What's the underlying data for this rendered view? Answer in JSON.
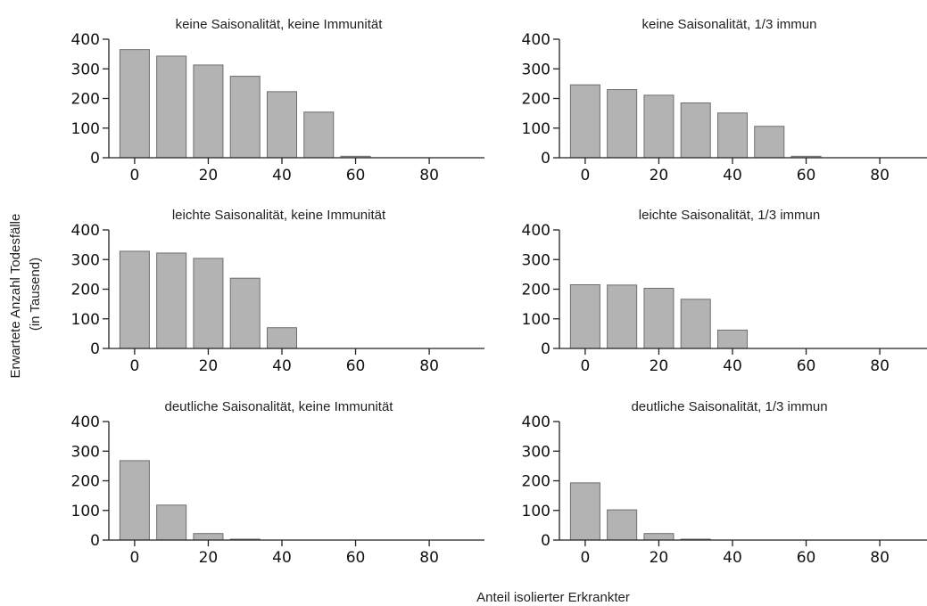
{
  "xlabel": "Anteil isolierter Erkrankter",
  "ylabel_line1": "Erwartete Anzahl Todesfälle",
  "ylabel_line2": "(in Tausend)",
  "bar_color": "#b3b3b3",
  "bar_edge_color": "#6e6e6e",
  "chart_data": [
    {
      "type": "bar",
      "title": "keine Saisonalität, keine Immunität",
      "x": [
        0,
        10,
        20,
        30,
        40,
        50,
        60,
        70,
        80,
        90
      ],
      "values": [
        365,
        343,
        313,
        275,
        223,
        154,
        5,
        0,
        0,
        0
      ],
      "ylim": [
        0,
        400
      ],
      "yticks": [
        0,
        100,
        200,
        300,
        400
      ],
      "xticks": [
        0,
        20,
        40,
        60,
        80
      ]
    },
    {
      "type": "bar",
      "title": "keine Saisonalität, 1/3 immun",
      "x": [
        0,
        10,
        20,
        30,
        40,
        50,
        60,
        70,
        80,
        90
      ],
      "values": [
        246,
        230,
        211,
        185,
        151,
        106,
        5,
        0,
        0,
        0
      ],
      "ylim": [
        0,
        400
      ],
      "yticks": [
        0,
        100,
        200,
        300,
        400
      ],
      "xticks": [
        0,
        20,
        40,
        60,
        80
      ]
    },
    {
      "type": "bar",
      "title": "leichte Saisonalität, keine Immunität",
      "x": [
        0,
        10,
        20,
        30,
        40,
        50,
        60,
        70,
        80,
        90
      ],
      "values": [
        328,
        322,
        304,
        237,
        70,
        0,
        0,
        0,
        0,
        0
      ],
      "ylim": [
        0,
        400
      ],
      "yticks": [
        0,
        100,
        200,
        300,
        400
      ],
      "xticks": [
        0,
        20,
        40,
        60,
        80
      ]
    },
    {
      "type": "bar",
      "title": "leichte Saisonalität, 1/3 immun",
      "x": [
        0,
        10,
        20,
        30,
        40,
        50,
        60,
        70,
        80,
        90
      ],
      "values": [
        215,
        214,
        203,
        166,
        62,
        0,
        0,
        0,
        0,
        0
      ],
      "ylim": [
        0,
        400
      ],
      "yticks": [
        0,
        100,
        200,
        300,
        400
      ],
      "xticks": [
        0,
        20,
        40,
        60,
        80
      ]
    },
    {
      "type": "bar",
      "title": "deutliche Saisonalität, keine Immunität",
      "x": [
        0,
        10,
        20,
        30,
        40,
        50,
        60,
        70,
        80,
        90
      ],
      "values": [
        268,
        118,
        22,
        3,
        0,
        0,
        0,
        0,
        0,
        0
      ],
      "ylim": [
        0,
        400
      ],
      "yticks": [
        0,
        100,
        200,
        300,
        400
      ],
      "xticks": [
        0,
        20,
        40,
        60,
        80
      ]
    },
    {
      "type": "bar",
      "title": "deutliche Saisonalität, 1/3 immun",
      "x": [
        0,
        10,
        20,
        30,
        40,
        50,
        60,
        70,
        80,
        90
      ],
      "values": [
        193,
        102,
        22,
        3,
        0,
        0,
        0,
        0,
        0,
        0
      ],
      "ylim": [
        0,
        400
      ],
      "yticks": [
        0,
        100,
        200,
        300,
        400
      ],
      "xticks": [
        0,
        20,
        40,
        60,
        80
      ]
    }
  ]
}
